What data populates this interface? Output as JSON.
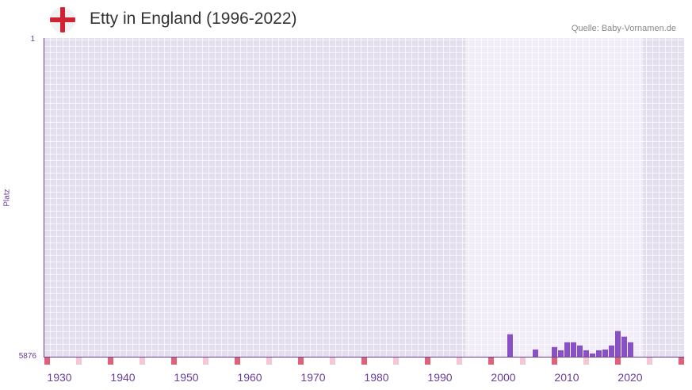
{
  "header": {
    "title": "Etty in England (1996-2022)",
    "source": "Quelle: Baby-Vornamen.de",
    "flag_icon": "england-flag-icon"
  },
  "colors": {
    "bar": "#8a50c8",
    "marker": "#e0607a",
    "marker_light": "#f4c8d2",
    "axis": "#6a3d9a",
    "bg_out": "#e3dfee",
    "bg_in": "#f0ecf8"
  },
  "chart_data": {
    "type": "bar",
    "title": "Etty in England (1996-2022)",
    "xlabel": "",
    "ylabel": "Platz",
    "y_axis_inverted": true,
    "ylim": [
      5876,
      1
    ],
    "xlim": [
      1928,
      2028
    ],
    "highlight_range": [
      1994,
      2022
    ],
    "grid": true,
    "x_ticks": [
      1930,
      1940,
      1950,
      1960,
      1970,
      1980,
      1990,
      2000,
      2010,
      2020
    ],
    "y_ticks": [
      1,
      5876
    ],
    "categories": [
      2001,
      2005,
      2008,
      2009,
      2010,
      2011,
      2012,
      2013,
      2014,
      2015,
      2016,
      2017,
      2018,
      2019,
      2020
    ],
    "values": [
      5462,
      5743,
      5698,
      5758,
      5610,
      5610,
      5669,
      5758,
      5817,
      5758,
      5743,
      5669,
      5403,
      5506,
      5610
    ]
  },
  "axis": {
    "y_top": "1",
    "y_bottom": "5876",
    "y_title": "Platz",
    "x_ticks": [
      "1930",
      "1940",
      "1950",
      "1960",
      "1970",
      "1980",
      "1990",
      "2000",
      "2010",
      "2020"
    ]
  }
}
